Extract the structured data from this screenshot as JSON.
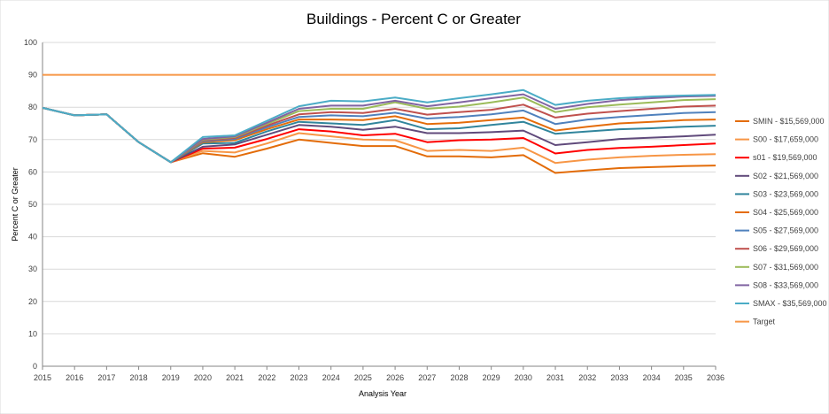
{
  "chart_data": {
    "type": "line",
    "title": "Buildings - Percent C or Greater",
    "xlabel": "Analysis Year",
    "ylabel": "Percent C or Greater",
    "ylim": [
      0,
      100
    ],
    "y_ticks": [
      0,
      10,
      20,
      30,
      40,
      50,
      60,
      70,
      80,
      90,
      100
    ],
    "x": [
      "2015",
      "2016",
      "2017",
      "2018",
      "2019",
      "2020",
      "2021",
      "2022",
      "2023",
      "2024",
      "2025",
      "2026",
      "2027",
      "2028",
      "2029",
      "2030",
      "2031",
      "2032",
      "2033",
      "2034",
      "2035",
      "2036"
    ],
    "grid": "horizontal",
    "legend_position": "right",
    "series": [
      {
        "name": "SMIN - $15,569,000",
        "color": "#E36C09",
        "values": [
          79.8,
          77.5,
          77.8,
          69.2,
          63.0,
          65.8,
          64.7,
          67.2,
          70.0,
          69.0,
          68.0,
          68.0,
          64.8,
          64.8,
          64.5,
          65.2,
          59.7,
          60.5,
          61.2,
          61.5,
          61.8,
          62.0
        ]
      },
      {
        "name": "S00 - $17,659,000",
        "color": "#F79646",
        "values": [
          79.8,
          77.5,
          77.8,
          69.2,
          63.0,
          66.5,
          66.0,
          68.8,
          72.0,
          71.0,
          70.0,
          69.8,
          66.5,
          66.8,
          66.5,
          67.5,
          62.8,
          63.8,
          64.5,
          65.0,
          65.3,
          65.5
        ]
      },
      {
        "name": "s01 - $19,569,000",
        "color": "#FF0000",
        "values": [
          79.8,
          77.5,
          77.8,
          69.2,
          63.0,
          67.2,
          67.5,
          70.2,
          73.2,
          72.5,
          71.3,
          71.8,
          69.2,
          69.8,
          70.0,
          70.5,
          65.7,
          66.8,
          67.4,
          67.8,
          68.3,
          68.8
        ]
      },
      {
        "name": "S02 - $21,569,000",
        "color": "#604A7B",
        "values": [
          79.8,
          77.5,
          77.8,
          69.2,
          63.0,
          67.8,
          68.5,
          71.5,
          74.5,
          74.0,
          73.0,
          74.0,
          72.0,
          72.0,
          72.3,
          72.8,
          68.3,
          69.2,
          70.2,
          70.6,
          71.0,
          71.5
        ]
      },
      {
        "name": "S03 - $23,569,000",
        "color": "#31859C",
        "values": [
          79.8,
          77.5,
          77.8,
          69.2,
          63.0,
          68.8,
          69.0,
          72.5,
          75.5,
          75.0,
          74.5,
          76.0,
          73.2,
          73.5,
          74.5,
          75.5,
          71.8,
          72.5,
          73.2,
          73.5,
          74.0,
          74.3
        ]
      },
      {
        "name": "S04 - $25,569,000",
        "color": "#E46C0A",
        "values": [
          79.8,
          77.5,
          77.8,
          69.2,
          63.0,
          69.2,
          69.8,
          73.2,
          76.2,
          76.2,
          76.0,
          77.2,
          74.8,
          75.2,
          76.0,
          76.8,
          72.8,
          74.0,
          75.0,
          75.5,
          76.0,
          76.2
        ]
      },
      {
        "name": "S05 - $27,569,000",
        "color": "#4F81BD",
        "values": [
          79.8,
          77.5,
          77.8,
          69.2,
          63.0,
          69.5,
          70.2,
          73.8,
          77.0,
          77.5,
          77.2,
          78.3,
          76.5,
          77.0,
          77.8,
          79.0,
          74.8,
          76.2,
          77.0,
          77.6,
          78.2,
          78.5
        ]
      },
      {
        "name": "S06 - $29,569,000",
        "color": "#C0504D",
        "values": [
          79.8,
          77.5,
          77.8,
          69.2,
          63.0,
          69.8,
          70.5,
          74.3,
          77.8,
          78.5,
          78.2,
          79.5,
          77.7,
          78.5,
          79.2,
          80.8,
          76.8,
          78.0,
          78.8,
          79.5,
          80.2,
          80.5
        ]
      },
      {
        "name": "S07 - $31,569,000",
        "color": "#9BBB59",
        "values": [
          79.8,
          77.5,
          77.8,
          69.2,
          63.0,
          70.0,
          70.8,
          74.8,
          78.8,
          79.5,
          79.5,
          81.5,
          79.5,
          80.2,
          81.5,
          83.0,
          78.5,
          80.0,
          80.8,
          81.5,
          82.2,
          82.5
        ]
      },
      {
        "name": "S08 - $33,569,000",
        "color": "#8064A2",
        "values": [
          79.8,
          77.5,
          77.8,
          69.2,
          63.0,
          70.2,
          71.0,
          75.2,
          79.5,
          80.5,
          80.5,
          82.0,
          80.3,
          81.5,
          82.8,
          84.0,
          79.5,
          81.0,
          82.2,
          82.8,
          83.3,
          83.5
        ]
      },
      {
        "name": "SMAX - $35,569,000",
        "color": "#4BACC6",
        "values": [
          79.8,
          77.5,
          77.8,
          69.2,
          63.0,
          70.8,
          71.3,
          75.8,
          80.3,
          82.0,
          81.8,
          83.0,
          81.5,
          82.8,
          84.0,
          85.3,
          80.7,
          82.0,
          82.8,
          83.3,
          83.6,
          83.8
        ]
      },
      {
        "name": "Target",
        "color": "#F79646",
        "values": [
          90,
          90,
          90,
          90,
          90,
          90,
          90,
          90,
          90,
          90,
          90,
          90,
          90,
          90,
          90,
          90,
          90,
          90,
          90,
          90,
          90,
          90
        ],
        "stroke_width": 2
      }
    ]
  }
}
